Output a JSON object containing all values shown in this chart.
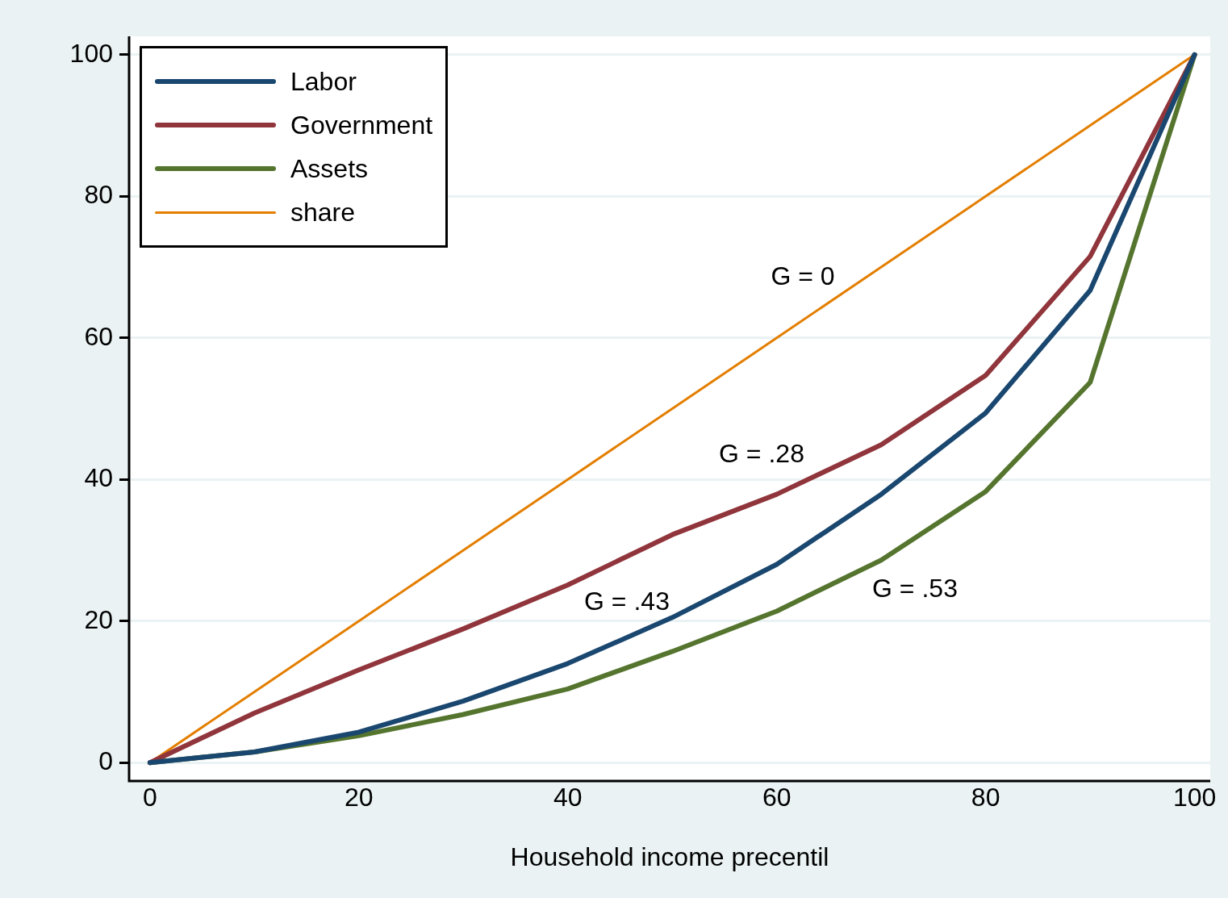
{
  "chart_data": {
    "type": "line",
    "xlabel": "Household income precentil",
    "x": [
      0,
      10,
      20,
      30,
      40,
      50,
      60,
      70,
      80,
      90,
      100
    ],
    "series": [
      {
        "name": "Labor",
        "color": "#1a476f",
        "values": [
          0,
          1.5,
          4.3,
          8.7,
          14,
          20.5,
          28,
          37.9,
          49.4,
          66.7,
          100
        ]
      },
      {
        "name": "Government",
        "color": "#90353b",
        "values": [
          0,
          7,
          13.1,
          18.9,
          25.1,
          32.2,
          37.9,
          44.9,
          54.7,
          71.5,
          100
        ]
      },
      {
        "name": "Assets",
        "color": "#55752f",
        "values": [
          0,
          1.5,
          3.8,
          6.8,
          10.4,
          15.7,
          21.4,
          28.6,
          38.3,
          53.7,
          100
        ]
      },
      {
        "name": "share",
        "color": "#e37e00",
        "values": [
          0,
          10,
          20,
          30,
          40,
          50,
          60,
          70,
          80,
          90,
          100
        ]
      }
    ],
    "xlim": [
      -2,
      101.5
    ],
    "ylim": [
      -2.6,
      102.6
    ],
    "xticks": [
      0,
      20,
      40,
      60,
      80,
      100
    ],
    "yticks": [
      0,
      20,
      40,
      60,
      80,
      100
    ],
    "grid": "y",
    "legend": "top left",
    "marker": "none",
    "line_style": "solid",
    "annotations": [
      "G = 0",
      "G = .28",
      "G = .43",
      "G = .53"
    ]
  }
}
